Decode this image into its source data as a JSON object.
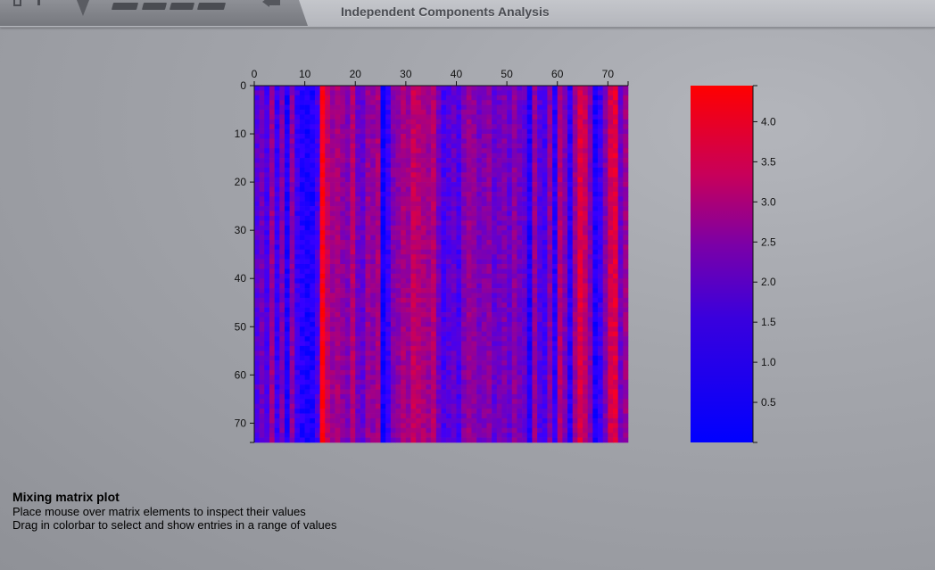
{
  "window": {
    "title": "Independent Components Analysis"
  },
  "toolbar": {
    "icons": [
      "window-square-icon",
      "stroke-icon",
      "dropdown-triangle-icon",
      "segment-button-icon",
      "segment-button-icon",
      "segment-button-icon",
      "segment-button-icon",
      "back-arrow-icon"
    ]
  },
  "plot": {
    "x_ticks": [
      "0",
      "10",
      "20",
      "30",
      "40",
      "50",
      "60",
      "70"
    ],
    "y_ticks": [
      "0",
      "10",
      "20",
      "30",
      "40",
      "50",
      "60",
      "70"
    ],
    "matrix_size": 74,
    "colormap": [
      "#0000ff",
      "#ff0000"
    ]
  },
  "colorbar": {
    "min": 0,
    "max": 4.45,
    "ticks": [
      "0.5",
      "1.0",
      "1.5",
      "2.0",
      "2.5",
      "3.0",
      "3.5",
      "4.0"
    ]
  },
  "description": {
    "title": "Mixing matrix plot",
    "line1": "Place mouse over matrix elements to inspect their values",
    "line2": "Drag in colorbar to select and show entries in a range of values"
  }
}
